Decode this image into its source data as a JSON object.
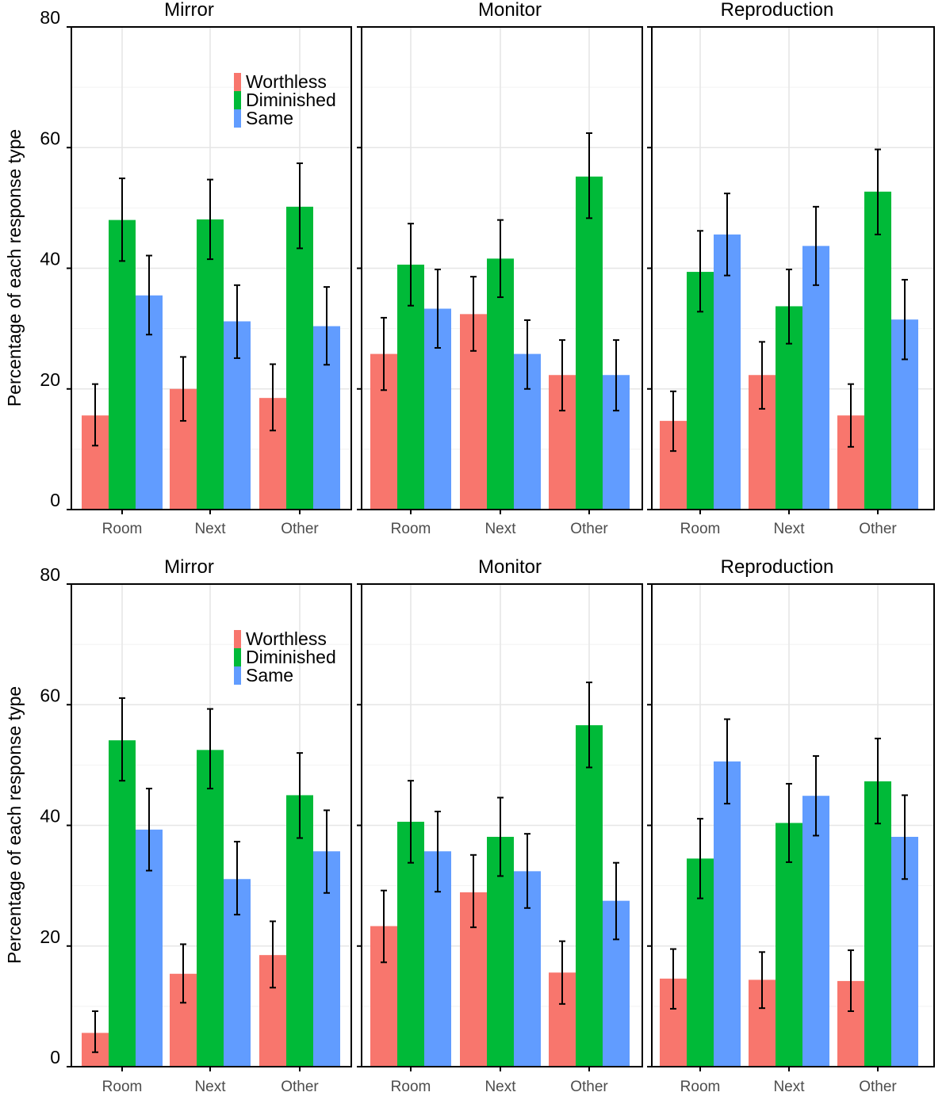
{
  "chart_data": [
    {
      "type": "bar",
      "row": "top",
      "ylabel": "Percentage of each response type",
      "ylim": [
        0,
        80
      ],
      "yticks": [
        0,
        20,
        40,
        60,
        80
      ],
      "categories": [
        "Room",
        "Next",
        "Other"
      ],
      "legend": {
        "placement": "top-right of first panel",
        "entries": [
          {
            "name": "Worthless",
            "color": "#F8766D"
          },
          {
            "name": "Diminished",
            "color": "#00BA38"
          },
          {
            "name": "Same",
            "color": "#619CFF"
          }
        ]
      },
      "panels": [
        {
          "title": "Mirror",
          "series": [
            {
              "name": "Worthless",
              "values": [
                15.6,
                20.0,
                18.5
              ],
              "err_low": [
                10.6,
                14.7,
                13.1
              ],
              "err_high": [
                20.8,
                25.3,
                24.1
              ]
            },
            {
              "name": "Diminished",
              "values": [
                48.0,
                48.1,
                50.2
              ],
              "err_low": [
                41.2,
                41.5,
                43.3
              ],
              "err_high": [
                54.9,
                54.7,
                57.4
              ]
            },
            {
              "name": "Same",
              "values": [
                35.5,
                31.2,
                30.4
              ],
              "err_low": [
                29.0,
                25.1,
                24.0
              ],
              "err_high": [
                42.1,
                37.2,
                36.9
              ]
            }
          ]
        },
        {
          "title": "Monitor",
          "series": [
            {
              "name": "Worthless",
              "values": [
                25.8,
                32.4,
                22.3
              ],
              "err_low": [
                19.8,
                26.3,
                16.4
              ],
              "err_high": [
                31.8,
                38.6,
                28.1
              ]
            },
            {
              "name": "Diminished",
              "values": [
                40.6,
                41.6,
                55.2
              ],
              "err_low": [
                33.8,
                35.2,
                48.3
              ],
              "err_high": [
                47.4,
                48.0,
                62.4
              ]
            },
            {
              "name": "Same",
              "values": [
                33.3,
                25.8,
                22.3
              ],
              "err_low": [
                26.8,
                20.0,
                16.4
              ],
              "err_high": [
                39.8,
                31.4,
                28.1
              ]
            }
          ]
        },
        {
          "title": "Reproduction",
          "series": [
            {
              "name": "Worthless",
              "values": [
                14.7,
                22.3,
                15.6
              ],
              "err_low": [
                9.7,
                16.7,
                10.4
              ],
              "err_high": [
                19.6,
                27.8,
                20.8
              ]
            },
            {
              "name": "Diminished",
              "values": [
                39.4,
                33.7,
                52.7
              ],
              "err_low": [
                32.8,
                27.5,
                45.6
              ],
              "err_high": [
                46.2,
                39.8,
                59.7
              ]
            },
            {
              "name": "Same",
              "values": [
                45.6,
                43.7,
                31.5
              ],
              "err_low": [
                38.8,
                37.2,
                24.9
              ],
              "err_high": [
                52.4,
                50.2,
                38.1
              ]
            }
          ]
        }
      ]
    },
    {
      "type": "bar",
      "row": "bottom",
      "ylabel": "Percentage of each response type",
      "ylim": [
        0,
        80
      ],
      "yticks": [
        0,
        20,
        40,
        60,
        80
      ],
      "categories": [
        "Room",
        "Next",
        "Other"
      ],
      "legend": {
        "placement": "top-right of first panel",
        "entries": [
          {
            "name": "Worthless",
            "color": "#F8766D"
          },
          {
            "name": "Diminished",
            "color": "#00BA38"
          },
          {
            "name": "Same",
            "color": "#619CFF"
          }
        ]
      },
      "panels": [
        {
          "title": "Mirror",
          "series": [
            {
              "name": "Worthless",
              "values": [
                5.6,
                15.4,
                18.5
              ],
              "err_low": [
                2.4,
                10.6,
                13.1
              ],
              "err_high": [
                9.2,
                20.3,
                24.1
              ]
            },
            {
              "name": "Diminished",
              "values": [
                54.1,
                52.5,
                45.0
              ],
              "err_low": [
                47.4,
                46.1,
                37.9
              ],
              "err_high": [
                61.1,
                59.3,
                52.0
              ]
            },
            {
              "name": "Same",
              "values": [
                39.3,
                31.1,
                35.7
              ],
              "err_low": [
                32.5,
                25.2,
                28.8
              ],
              "err_high": [
                46.1,
                37.3,
                42.5
              ]
            }
          ]
        },
        {
          "title": "Monitor",
          "series": [
            {
              "name": "Worthless",
              "values": [
                23.3,
                28.9,
                15.6
              ],
              "err_low": [
                17.3,
                23.1,
                10.4
              ],
              "err_high": [
                29.2,
                35.1,
                20.8
              ]
            },
            {
              "name": "Diminished",
              "values": [
                40.6,
                38.1,
                56.6
              ],
              "err_low": [
                33.8,
                31.6,
                49.6
              ],
              "err_high": [
                47.4,
                44.6,
                63.7
              ]
            },
            {
              "name": "Same",
              "values": [
                35.7,
                32.4,
                27.5
              ],
              "err_low": [
                29.0,
                26.3,
                21.1
              ],
              "err_high": [
                42.3,
                38.6,
                33.8
              ]
            }
          ]
        },
        {
          "title": "Reproduction",
          "series": [
            {
              "name": "Worthless",
              "values": [
                14.6,
                14.4,
                14.2
              ],
              "err_low": [
                9.6,
                9.7,
                9.2
              ],
              "err_high": [
                19.5,
                19.0,
                19.3
              ]
            },
            {
              "name": "Diminished",
              "values": [
                34.5,
                40.4,
                47.3
              ],
              "err_low": [
                27.9,
                33.9,
                40.3
              ],
              "err_high": [
                41.1,
                46.9,
                54.4
              ]
            },
            {
              "name": "Same",
              "values": [
                50.6,
                44.9,
                38.1
              ],
              "err_low": [
                43.6,
                38.3,
                31.1
              ],
              "err_high": [
                57.6,
                51.5,
                45.0
              ]
            }
          ]
        }
      ]
    }
  ]
}
